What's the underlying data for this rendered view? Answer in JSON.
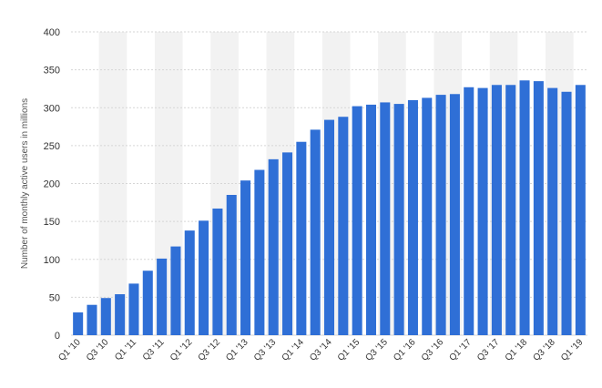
{
  "chart_data": {
    "type": "bar",
    "title": "",
    "xlabel": "",
    "ylabel": "Number of monthly active users in millions",
    "ylim": [
      0,
      400
    ],
    "yticks": [
      0,
      50,
      100,
      150,
      200,
      250,
      300,
      350,
      400
    ],
    "grid": "horizontal dashed, alternating column shading",
    "bar_color": "#2f6fd6",
    "shade_color": "#f2f2f2",
    "categories": [
      "Q1 '10",
      "Q2 '10",
      "Q3 '10",
      "Q4 '10",
      "Q1 '11",
      "Q2 '11",
      "Q3 '11",
      "Q4 '11",
      "Q1 '12",
      "Q2 '12",
      "Q3 '12",
      "Q4 '12",
      "Q1 '13",
      "Q2 '13",
      "Q3 '13",
      "Q4 '13",
      "Q1 '14",
      "Q2 '14",
      "Q3 '14",
      "Q4 '14",
      "Q1 '15",
      "Q2 '15",
      "Q3 '15",
      "Q4 '15",
      "Q1 '16",
      "Q2 '16",
      "Q3 '16",
      "Q4 '16",
      "Q1 '17",
      "Q2 '17",
      "Q3 '17",
      "Q4 '17",
      "Q1 '18",
      "Q2 '18",
      "Q3 '18",
      "Q4 '18",
      "Q1 '19"
    ],
    "x_tick_labels": [
      "Q1 '10",
      "",
      "Q3 '10",
      "",
      "Q1 '11",
      "",
      "Q3 '11",
      "",
      "Q1 '12",
      "",
      "Q3 '12",
      "",
      "Q1 '13",
      "",
      "Q3 '13",
      "",
      "Q1 '14",
      "",
      "Q3 '14",
      "",
      "Q1 '15",
      "",
      "Q3 '15",
      "",
      "Q1 '16",
      "",
      "Q3 '16",
      "",
      "Q1 '17",
      "",
      "Q3 '17",
      "",
      "Q1 '18",
      "",
      "Q3 '18",
      "",
      "Q1 '19"
    ],
    "values": [
      30,
      40,
      49,
      54,
      68,
      85,
      101,
      117,
      138,
      151,
      167,
      185,
      204,
      218,
      232,
      241,
      255,
      271,
      284,
      288,
      302,
      304,
      307,
      305,
      310,
      313,
      317,
      318,
      327,
      326,
      330,
      330,
      336,
      335,
      326,
      321,
      330
    ]
  }
}
